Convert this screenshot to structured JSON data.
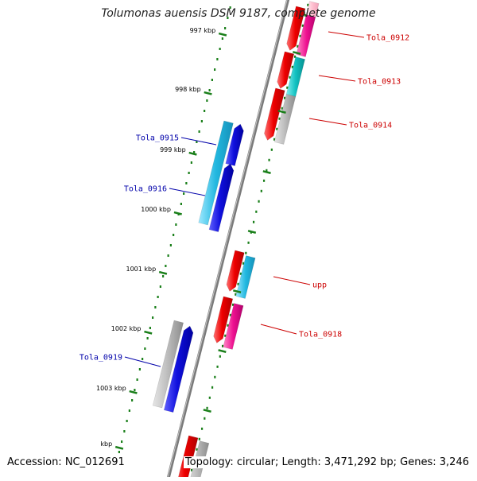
{
  "title": "Tolumonas auensis DSM 9187, complete genome",
  "footer": {
    "accession": "Accession: NC_012691",
    "summary": "Topology: circular; Length: 3,471,292 bp; Genes: 3,246"
  },
  "scale_labels": [
    "997 kbp",
    "998 kbp",
    "999 kbp",
    "1000 kbp",
    "1001 kbp",
    "1002 kbp",
    "1003 kbp",
    "kbp"
  ],
  "gene_labels": [
    {
      "text": "Tola_0912",
      "color": "#cc0000"
    },
    {
      "text": "Tola_0913",
      "color": "#cc0000"
    },
    {
      "text": "Tola_0914",
      "color": "#cc0000"
    },
    {
      "text": "Tola_0915",
      "color": "#0000aa"
    },
    {
      "text": "Tola_0916",
      "color": "#0000aa"
    },
    {
      "text": "upp",
      "color": "#cc0000"
    },
    {
      "text": "Tola_0918",
      "color": "#cc0000"
    },
    {
      "text": "Tola_0919",
      "color": "#0000aa"
    }
  ],
  "colors": {
    "backbone": "#888888",
    "tick": "#1a7f1a",
    "forward_cds": "#ee0000",
    "reverse_cds": "#1010dd",
    "cyan_feature": "#22b8e0",
    "magenta_feature": "#ee1090",
    "teal_feature": "#10c0c0",
    "grey_feature": "#bbbbbb",
    "pink_feature": "#ffc0d0"
  }
}
